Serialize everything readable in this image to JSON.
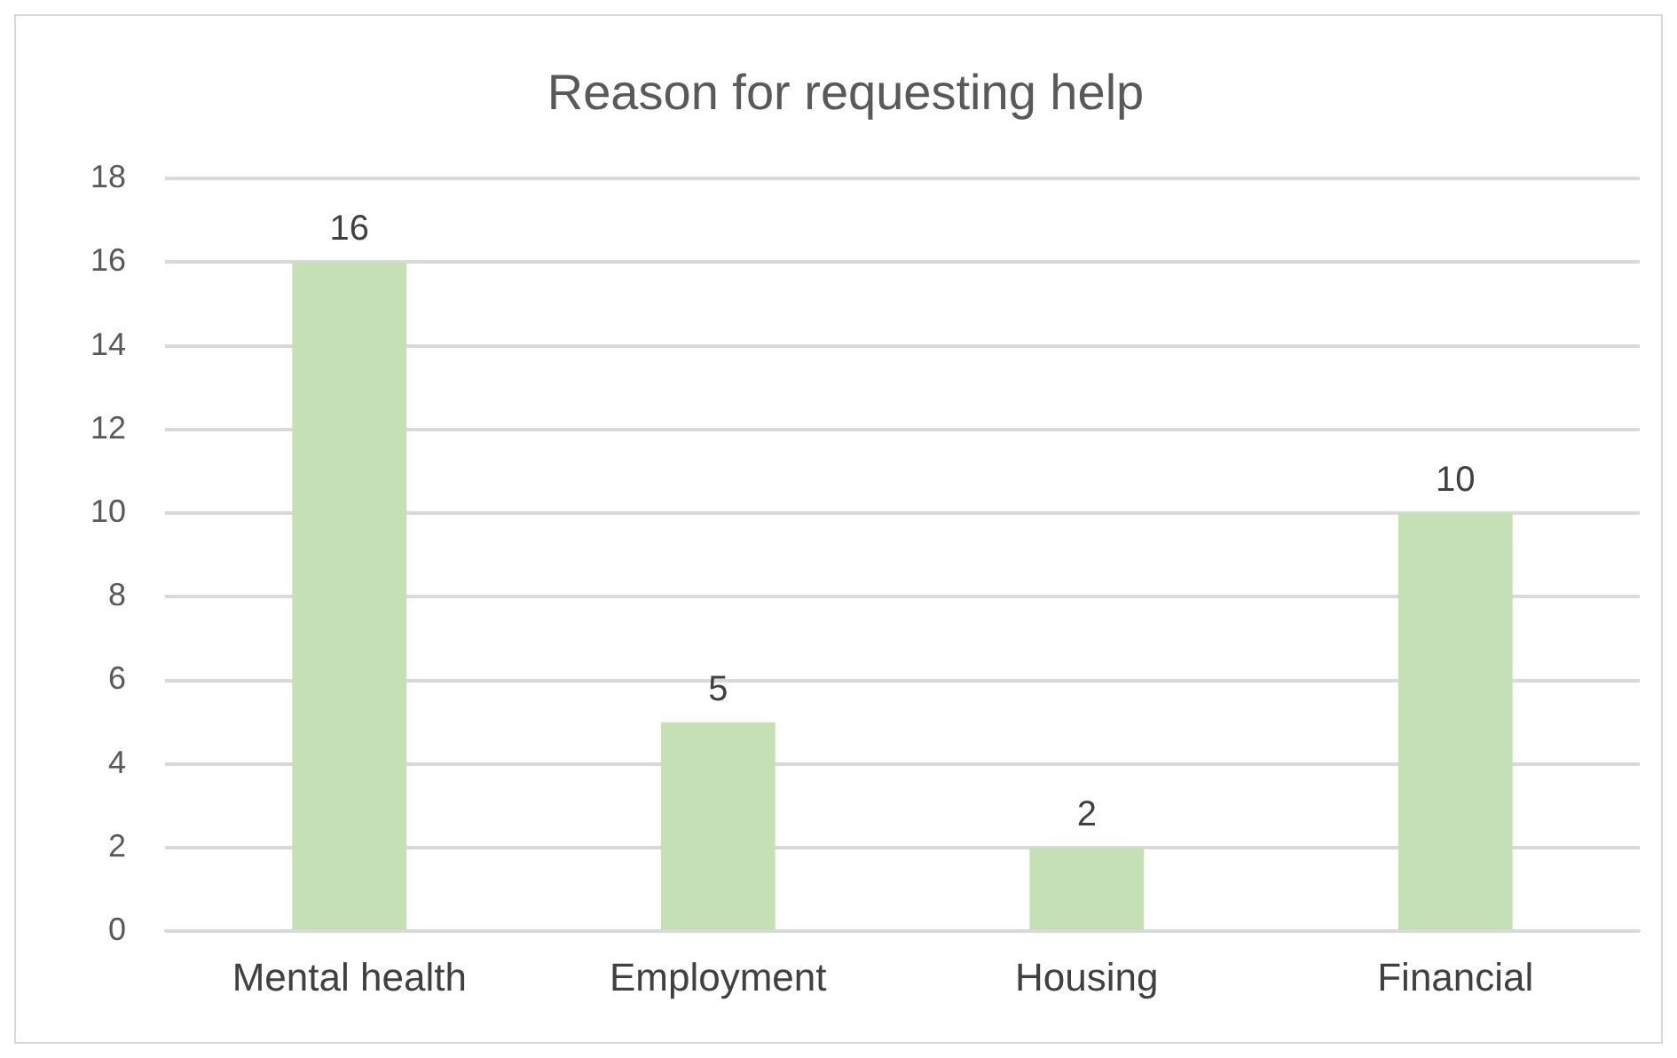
{
  "chart_data": {
    "type": "bar",
    "title": "Reason for requesting help",
    "categories": [
      "Mental health",
      "Employment",
      "Housing",
      "Financial"
    ],
    "values": [
      16,
      5,
      2,
      10
    ],
    "color": "#c5e0b4",
    "ylim": [
      0,
      18
    ],
    "yticks": [
      0,
      2,
      4,
      6,
      8,
      10,
      12,
      14,
      16,
      18
    ],
    "grid": "y",
    "data_labels": true,
    "legend": false
  }
}
